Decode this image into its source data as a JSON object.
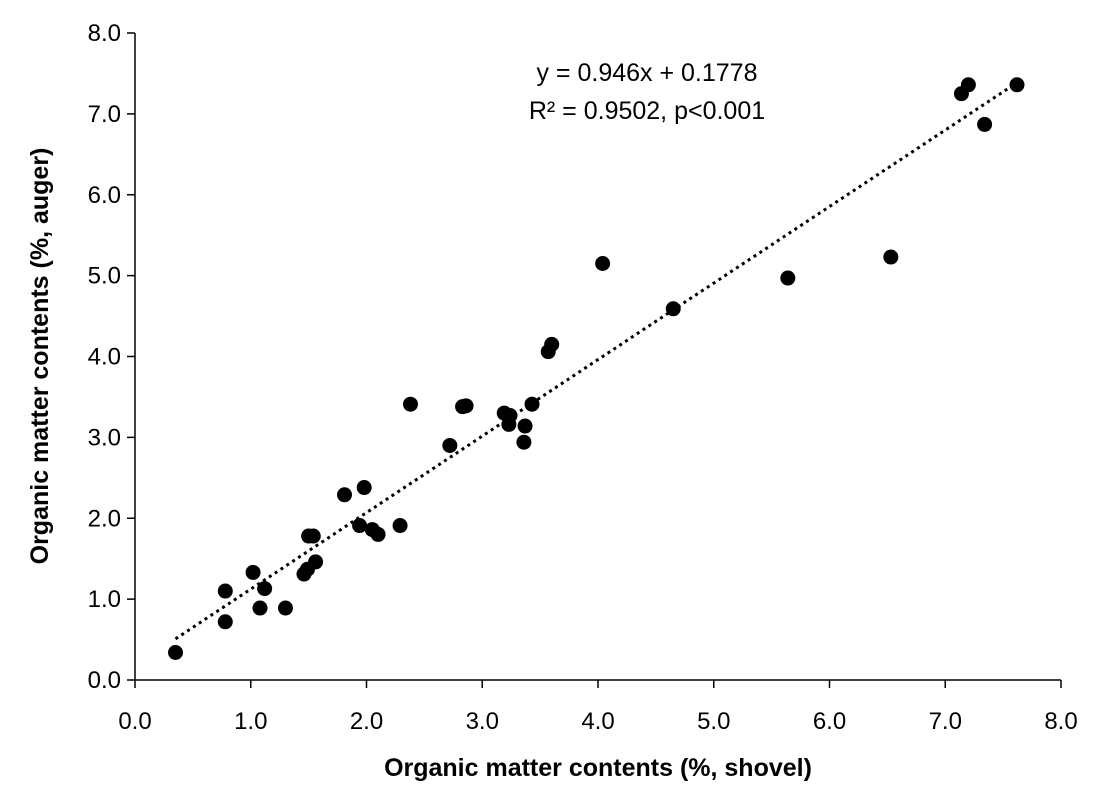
{
  "chart_data": {
    "type": "scatter",
    "xlabel": "Organic matter contents (%, shovel)",
    "ylabel": "Organic matter contents (%, auger)",
    "xlim": [
      0,
      8
    ],
    "ylim": [
      0,
      8
    ],
    "x_ticks": [
      "0.0",
      "1.0",
      "2.0",
      "3.0",
      "4.0",
      "5.0",
      "6.0",
      "7.0",
      "8.0"
    ],
    "y_ticks": [
      "0.0",
      "1.0",
      "2.0",
      "3.0",
      "4.0",
      "5.0",
      "6.0",
      "7.0",
      "8.0"
    ],
    "grid": false,
    "annotations": {
      "equation": "y = 0.946x + 0.1778",
      "r_squared": "R² = 0.9502, p<0.001"
    },
    "trendline": {
      "style": "dotted",
      "slope": 0.946,
      "intercept": 0.1778,
      "x_range": [
        0.35,
        7.62
      ]
    },
    "points": [
      [
        0.35,
        0.34
      ],
      [
        0.78,
        1.1
      ],
      [
        0.78,
        0.72
      ],
      [
        1.02,
        1.33
      ],
      [
        1.08,
        0.89
      ],
      [
        1.12,
        1.13
      ],
      [
        1.3,
        0.89
      ],
      [
        1.46,
        1.31
      ],
      [
        1.49,
        1.37
      ],
      [
        1.5,
        1.78
      ],
      [
        1.54,
        1.78
      ],
      [
        1.56,
        1.46
      ],
      [
        1.81,
        2.29
      ],
      [
        1.94,
        1.91
      ],
      [
        1.98,
        2.38
      ],
      [
        2.05,
        1.86
      ],
      [
        2.1,
        1.8
      ],
      [
        2.29,
        1.91
      ],
      [
        2.38,
        3.41
      ],
      [
        2.72,
        2.9
      ],
      [
        2.83,
        3.38
      ],
      [
        2.86,
        3.39
      ],
      [
        3.19,
        3.3
      ],
      [
        3.23,
        3.16
      ],
      [
        3.24,
        3.27
      ],
      [
        3.36,
        2.94
      ],
      [
        3.37,
        3.14
      ],
      [
        3.43,
        3.41
      ],
      [
        3.57,
        4.06
      ],
      [
        3.6,
        4.15
      ],
      [
        4.04,
        5.15
      ],
      [
        4.65,
        4.59
      ],
      [
        5.64,
        4.97
      ],
      [
        6.53,
        5.23
      ],
      [
        7.14,
        7.25
      ],
      [
        7.2,
        7.36
      ],
      [
        7.34,
        6.87
      ],
      [
        7.62,
        7.36
      ]
    ]
  }
}
